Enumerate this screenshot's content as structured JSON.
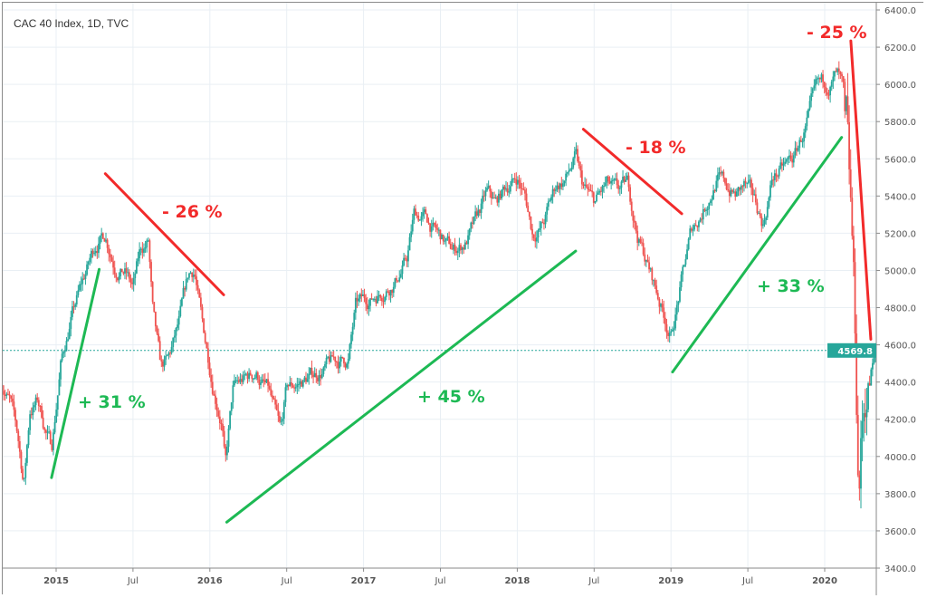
{
  "chart_data": {
    "type": "candlestick",
    "title": "CAC 40 Index, 1D, TVC",
    "xlabel": "",
    "ylabel": "",
    "ylim": [
      3400,
      6400
    ],
    "y_ticks": [
      "6400.0",
      "6200.0",
      "6000.0",
      "5800.0",
      "5600.0",
      "5400.0",
      "5200.0",
      "5000.0",
      "4800.0",
      "4600.0",
      "4400.0",
      "4200.0",
      "4000.0",
      "3800.0",
      "3600.0",
      "3400.0"
    ],
    "x_ticks": [
      {
        "label": "2015",
        "t": 2015.0
      },
      {
        "label": "Jul",
        "t": 2015.5
      },
      {
        "label": "2016",
        "t": 2016.0
      },
      {
        "label": "Jul",
        "t": 2016.5
      },
      {
        "label": "2017",
        "t": 2017.0
      },
      {
        "label": "Jul",
        "t": 2017.5
      },
      {
        "label": "2018",
        "t": 2018.0
      },
      {
        "label": "Jul",
        "t": 2018.5
      },
      {
        "label": "2019",
        "t": 2019.0
      },
      {
        "label": "Jul",
        "t": 2019.5
      },
      {
        "label": "2020",
        "t": 2020.0
      }
    ],
    "xlim": [
      2014.64,
      2020.34
    ],
    "grid": true,
    "last_price": "4569.8",
    "last_price_value": 4569.8,
    "up_color": "#26a69a",
    "down_color": "#ef5350",
    "price_path": [
      [
        2014.64,
        4420
      ],
      [
        2014.7,
        4300
      ],
      [
        2014.75,
        4100
      ],
      [
        2014.79,
        3850
      ],
      [
        2014.83,
        4250
      ],
      [
        2014.88,
        4300
      ],
      [
        2014.93,
        4150
      ],
      [
        2014.97,
        4050
      ],
      [
        2015.03,
        4500
      ],
      [
        2015.1,
        4750
      ],
      [
        2015.18,
        4950
      ],
      [
        2015.26,
        5150
      ],
      [
        2015.32,
        5200
      ],
      [
        2015.38,
        5050
      ],
      [
        2015.45,
        5000
      ],
      [
        2015.5,
        4900
      ],
      [
        2015.55,
        5100
      ],
      [
        2015.6,
        5150
      ],
      [
        2015.63,
        4750
      ],
      [
        2015.68,
        4450
      ],
      [
        2015.73,
        4500
      ],
      [
        2015.8,
        4700
      ],
      [
        2015.86,
        4950
      ],
      [
        2015.9,
        5000
      ],
      [
        2015.95,
        4700
      ],
      [
        2016.02,
        4400
      ],
      [
        2016.08,
        4200
      ],
      [
        2016.1,
        3950
      ],
      [
        2016.15,
        4350
      ],
      [
        2016.22,
        4400
      ],
      [
        2016.3,
        4450
      ],
      [
        2016.38,
        4350
      ],
      [
        2016.46,
        4100
      ],
      [
        2016.5,
        4350
      ],
      [
        2016.6,
        4400
      ],
      [
        2016.7,
        4450
      ],
      [
        2016.8,
        4500
      ],
      [
        2016.9,
        4520
      ],
      [
        2016.95,
        4800
      ],
      [
        2017.05,
        4850
      ],
      [
        2017.12,
        4900
      ],
      [
        2017.2,
        4950
      ],
      [
        2017.28,
        5050
      ],
      [
        2017.33,
        5300
      ],
      [
        2017.4,
        5280
      ],
      [
        2017.47,
        5200
      ],
      [
        2017.52,
        5150
      ],
      [
        2017.58,
        5100
      ],
      [
        2017.66,
        5150
      ],
      [
        2017.73,
        5250
      ],
      [
        2017.8,
        5400
      ],
      [
        2017.86,
        5350
      ],
      [
        2017.93,
        5450
      ],
      [
        2018.0,
        5500
      ],
      [
        2018.05,
        5400
      ],
      [
        2018.1,
        5200
      ],
      [
        2018.17,
        5250
      ],
      [
        2018.25,
        5450
      ],
      [
        2018.32,
        5500
      ],
      [
        2018.38,
        5600
      ],
      [
        2018.42,
        5450
      ],
      [
        2018.5,
        5350
      ],
      [
        2018.58,
        5450
      ],
      [
        2018.65,
        5400
      ],
      [
        2018.72,
        5450
      ],
      [
        2018.78,
        5200
      ],
      [
        2018.84,
        5050
      ],
      [
        2018.9,
        4900
      ],
      [
        2018.96,
        4750
      ],
      [
        2019.0,
        4650
      ],
      [
        2019.06,
        4900
      ],
      [
        2019.13,
        5200
      ],
      [
        2019.22,
        5350
      ],
      [
        2019.3,
        5500
      ],
      [
        2019.36,
        5450
      ],
      [
        2019.42,
        5400
      ],
      [
        2019.48,
        5450
      ],
      [
        2019.55,
        5350
      ],
      [
        2019.6,
        5250
      ],
      [
        2019.66,
        5500
      ],
      [
        2019.74,
        5550
      ],
      [
        2019.8,
        5600
      ],
      [
        2019.87,
        5750
      ],
      [
        2019.95,
        5950
      ],
      [
        2020.02,
        6000
      ],
      [
        2020.08,
        6050
      ],
      [
        2020.12,
        5950
      ],
      [
        2020.15,
        5450
      ],
      [
        2020.18,
        5000
      ],
      [
        2020.2,
        4500
      ],
      [
        2020.22,
        3750
      ],
      [
        2020.24,
        4100
      ],
      [
        2020.27,
        4350
      ],
      [
        2020.3,
        4450
      ],
      [
        2020.34,
        4570
      ]
    ],
    "annotations": [
      {
        "label": "- 26 %",
        "color": "#f22a2a",
        "from": [
          2015.32,
          5520
        ],
        "to": [
          2016.09,
          4869
        ]
      },
      {
        "label": "+ 31 %",
        "color": "#1db954",
        "from": [
          2014.97,
          3886
        ],
        "to": [
          2015.28,
          5006
        ]
      },
      {
        "label": "+ 45 %",
        "color": "#1db954",
        "from": [
          2016.11,
          3647
        ],
        "to": [
          2018.38,
          5104
        ]
      },
      {
        "label": "- 18 %",
        "color": "#f22a2a",
        "from": [
          2018.43,
          5759
        ],
        "to": [
          2019.07,
          5305
        ]
      },
      {
        "label": "+ 33 %",
        "color": "#1db954",
        "from": [
          2019.01,
          4454
        ],
        "to": [
          2020.11,
          5715
        ]
      },
      {
        "label": "- 25 %",
        "color": "#f22a2a",
        "from": [
          2020.17,
          6234
        ],
        "to": [
          2020.3,
          4630
        ]
      }
    ]
  }
}
